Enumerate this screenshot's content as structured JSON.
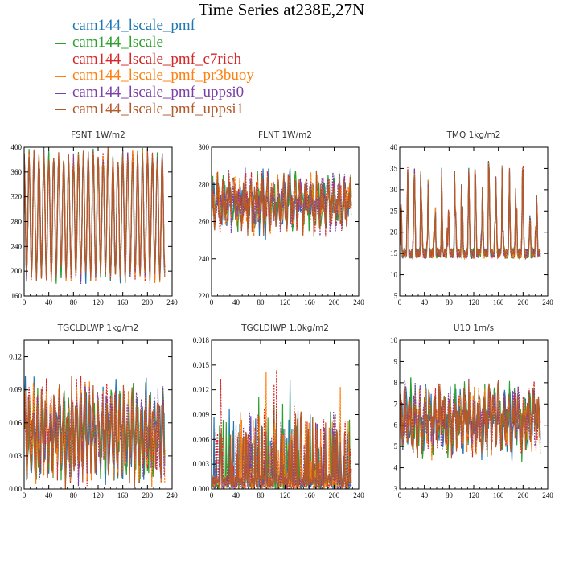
{
  "title": "Time Series at238E,27N",
  "legend": [
    {
      "name": "cam144_lscale_pmf",
      "color": "#1f77b4"
    },
    {
      "name": "cam144_lscale",
      "color": "#2ca02c"
    },
    {
      "name": "cam144_lscale_pmf_c7rich",
      "color": "#d62728"
    },
    {
      "name": "cam144_lscale_pmf_pr3buoy",
      "color": "#ff7f0e"
    },
    {
      "name": "cam144_lscale_pmf_uppsi0",
      "color": "#7b3fa8"
    },
    {
      "name": "cam144_lscale_pmf_uppsi1",
      "color": "#b3592a"
    }
  ],
  "chart_data": [
    {
      "type": "line",
      "title": "FSNT   1W/m2",
      "xlim": [
        0,
        240
      ],
      "ylim": [
        160,
        400
      ],
      "xticks": [
        "0",
        "40",
        "80",
        "120",
        "160",
        "200",
        "240"
      ],
      "yticks": [
        "160",
        "200",
        "240",
        "280",
        "320",
        "360",
        "400"
      ],
      "n": 228,
      "mean": 290,
      "amp": 95,
      "cycle": "diurnal",
      "period": 8,
      "noise": 12,
      "series": [
        "cam144_lscale_pmf",
        "cam144_lscale",
        "cam144_lscale_pmf_c7rich",
        "cam144_lscale_pmf_pr3buoy",
        "cam144_lscale_pmf_uppsi0",
        "cam144_lscale_pmf_uppsi1"
      ]
    },
    {
      "type": "line",
      "title": "FLNT   1W/m2",
      "xlim": [
        0,
        240
      ],
      "ylim": [
        220,
        300
      ],
      "xticks": [
        "0",
        "40",
        "80",
        "120",
        "160",
        "200",
        "240"
      ],
      "yticks": [
        "220",
        "240",
        "260",
        "280",
        "300"
      ],
      "n": 228,
      "mean": 270,
      "amp": 7,
      "cycle": "noisy",
      "period": 9,
      "noise": 9,
      "series": [
        "cam144_lscale_pmf",
        "cam144_lscale",
        "cam144_lscale_pmf_c7rich",
        "cam144_lscale_pmf_pr3buoy",
        "cam144_lscale_pmf_uppsi0",
        "cam144_lscale_pmf_uppsi1"
      ]
    },
    {
      "type": "line",
      "title": "TMQ   1kg/m2",
      "xlim": [
        0,
        240
      ],
      "ylim": [
        5,
        40
      ],
      "xticks": [
        "0",
        "40",
        "80",
        "120",
        "160",
        "200",
        "240"
      ],
      "yticks": [
        "5",
        "10",
        "15",
        "20",
        "25",
        "30",
        "35",
        "40"
      ],
      "n": 228,
      "mean": 18,
      "amp": 6,
      "cycle": "spiky",
      "period": 11,
      "noise": 2.5,
      "series": [
        "cam144_lscale_pmf",
        "cam144_lscale",
        "cam144_lscale_pmf_c7rich",
        "cam144_lscale_pmf_pr3buoy",
        "cam144_lscale_pmf_uppsi0",
        "cam144_lscale_pmf_uppsi1"
      ]
    },
    {
      "type": "line",
      "title": "TGCLDLWP   1kg/m2",
      "xlim": [
        0,
        240
      ],
      "ylim": [
        0,
        0.135
      ],
      "xticks": [
        "0",
        "40",
        "80",
        "120",
        "160",
        "200",
        "240"
      ],
      "yticks": [
        "0.00",
        "0.03",
        "0.06",
        "0.09",
        "0.12"
      ],
      "n": 228,
      "mean": 0.05,
      "amp": 0.025,
      "cycle": "noisy",
      "period": 7,
      "noise": 0.02,
      "series": [
        "cam144_lscale_pmf",
        "cam144_lscale",
        "cam144_lscale_pmf_c7rich",
        "cam144_lscale_pmf_pr3buoy",
        "cam144_lscale_pmf_uppsi0",
        "cam144_lscale_pmf_uppsi1"
      ]
    },
    {
      "type": "line",
      "title": "TGCLDIWP   1.0kg/m2",
      "xlim": [
        0,
        240
      ],
      "ylim": [
        0,
        0.018
      ],
      "xticks": [
        "0",
        "40",
        "80",
        "120",
        "160",
        "200",
        "240"
      ],
      "yticks": [
        "0.000",
        "0.003",
        "0.006",
        "0.009",
        "0.012",
        "0.015",
        "0.018"
      ],
      "n": 228,
      "mean": 0.002,
      "amp": 0.002,
      "cycle": "spikes",
      "period": 9,
      "noise": 0.004,
      "series": [
        "cam144_lscale_pmf",
        "cam144_lscale",
        "cam144_lscale_pmf_c7rich",
        "cam144_lscale_pmf_pr3buoy",
        "cam144_lscale_pmf_uppsi0",
        "cam144_lscale_pmf_uppsi1"
      ]
    },
    {
      "type": "line",
      "title": "U10   1m/s",
      "xlim": [
        0,
        240
      ],
      "ylim": [
        3,
        10
      ],
      "xticks": [
        "0",
        "40",
        "80",
        "120",
        "160",
        "200",
        "240"
      ],
      "yticks": [
        "3",
        "4",
        "5",
        "6",
        "7",
        "8",
        "9",
        "10"
      ],
      "n": 228,
      "mean": 6.2,
      "amp": 0.8,
      "cycle": "noisy",
      "period": 8,
      "noise": 0.9,
      "series": [
        "cam144_lscale_pmf",
        "cam144_lscale",
        "cam144_lscale_pmf_c7rich",
        "cam144_lscale_pmf_pr3buoy",
        "cam144_lscale_pmf_uppsi0",
        "cam144_lscale_pmf_uppsi1"
      ]
    }
  ]
}
